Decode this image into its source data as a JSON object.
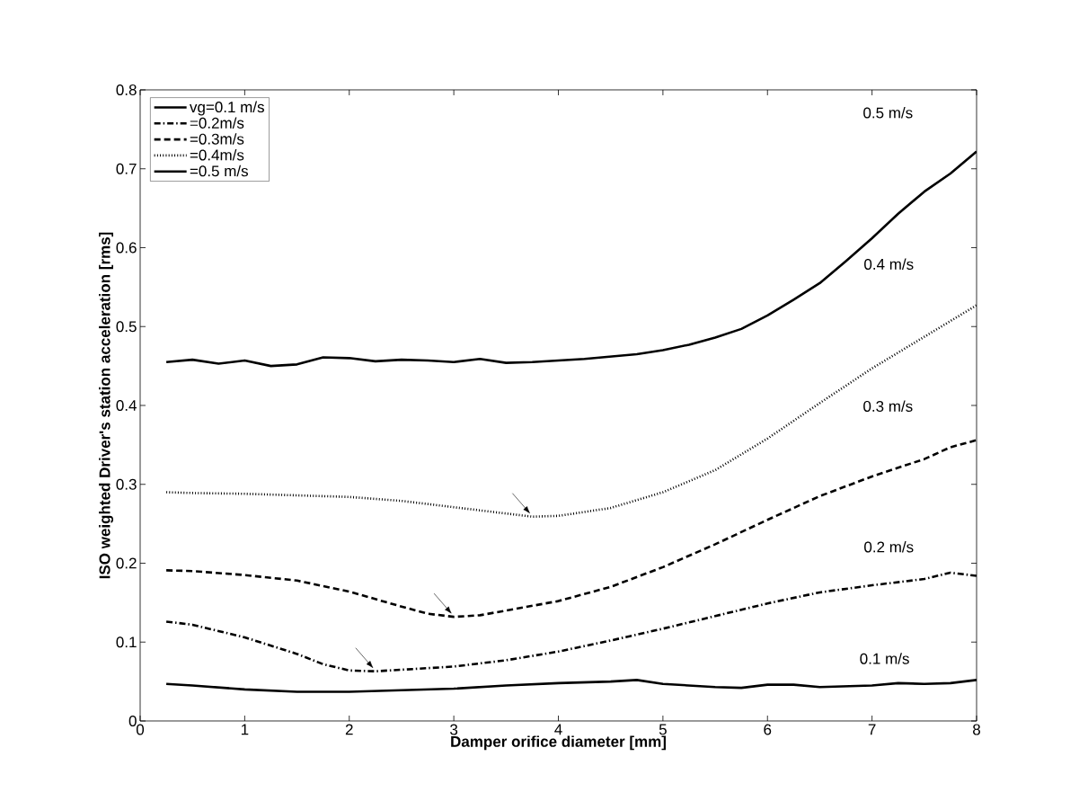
{
  "chart_data": {
    "type": "line",
    "xlabel": "Damper orifice diameter [mm]",
    "ylabel": "ISO weighted Driver's station acceleration [rms]",
    "xlim": [
      0,
      8
    ],
    "ylim": [
      0,
      0.8
    ],
    "xticks": [
      0,
      1,
      2,
      3,
      4,
      5,
      6,
      7,
      8
    ],
    "yticks": [
      0,
      0.1,
      0.2,
      0.3,
      0.4,
      0.5,
      0.6,
      0.7,
      0.8
    ],
    "grid": false,
    "legend": "top left",
    "marker": "none",
    "series": [
      {
        "name": "vg=0.1 m/s",
        "color": "#000000",
        "line_style": "solid",
        "x": [
          0.25,
          0.5,
          1,
          1.5,
          2,
          2.5,
          3,
          3.5,
          4,
          4.5,
          4.75,
          5,
          5.5,
          5.75,
          6,
          6.25,
          6.5,
          7,
          7.25,
          7.5,
          7.75,
          8
        ],
        "values": [
          0.047,
          0.045,
          0.04,
          0.037,
          0.037,
          0.039,
          0.041,
          0.045,
          0.048,
          0.05,
          0.052,
          0.047,
          0.043,
          0.042,
          0.046,
          0.046,
          0.043,
          0.045,
          0.048,
          0.047,
          0.048,
          0.052
        ]
      },
      {
        "name": "=0.2m/s",
        "color": "#000000",
        "line_style": "dashdot",
        "x": [
          0.25,
          0.5,
          1,
          1.5,
          1.75,
          2,
          2.25,
          2.5,
          3,
          3.5,
          4,
          4.5,
          5,
          5.5,
          6,
          6.5,
          7,
          7.5,
          7.75,
          8
        ],
        "values": [
          0.126,
          0.122,
          0.106,
          0.085,
          0.072,
          0.064,
          0.063,
          0.065,
          0.069,
          0.077,
          0.088,
          0.102,
          0.117,
          0.133,
          0.149,
          0.163,
          0.172,
          0.18,
          0.188,
          0.184
        ]
      },
      {
        "name": "=0.3m/s",
        "color": "#000000",
        "line_style": "dashed",
        "x": [
          0.25,
          0.5,
          1,
          1.5,
          2,
          2.5,
          2.75,
          3,
          3.25,
          3.5,
          4,
          4.5,
          5,
          5.5,
          6,
          6.5,
          7,
          7.5,
          7.75,
          8
        ],
        "values": [
          0.191,
          0.19,
          0.185,
          0.178,
          0.164,
          0.145,
          0.136,
          0.132,
          0.134,
          0.14,
          0.152,
          0.17,
          0.195,
          0.224,
          0.255,
          0.285,
          0.31,
          0.332,
          0.347,
          0.356
        ]
      },
      {
        "name": "=0.4m/s",
        "color": "#000000",
        "line_style": "dotted",
        "x": [
          0.25,
          0.5,
          1,
          1.5,
          2,
          2.5,
          3,
          3.5,
          3.75,
          4,
          4.5,
          5,
          5.5,
          6,
          6.5,
          7,
          7.5,
          8
        ],
        "values": [
          0.29,
          0.289,
          0.288,
          0.286,
          0.284,
          0.279,
          0.271,
          0.263,
          0.259,
          0.26,
          0.27,
          0.29,
          0.318,
          0.358,
          0.403,
          0.447,
          0.487,
          0.527
        ]
      },
      {
        "name": "=0.5 m/s",
        "color": "#000000",
        "line_style": "solid",
        "x": [
          0.25,
          0.5,
          0.75,
          1,
          1.25,
          1.5,
          1.75,
          2,
          2.25,
          2.5,
          2.75,
          3,
          3.25,
          3.5,
          3.75,
          4,
          4.25,
          4.5,
          4.75,
          5,
          5.25,
          5.5,
          5.75,
          6,
          6.25,
          6.5,
          6.75,
          7,
          7.25,
          7.5,
          7.75,
          8
        ],
        "values": [
          0.455,
          0.458,
          0.453,
          0.457,
          0.45,
          0.452,
          0.461,
          0.46,
          0.456,
          0.458,
          0.457,
          0.455,
          0.459,
          0.454,
          0.455,
          0.457,
          0.459,
          0.462,
          0.465,
          0.47,
          0.477,
          0.486,
          0.497,
          0.514,
          0.534,
          0.555,
          0.583,
          0.612,
          0.643,
          0.671,
          0.694,
          0.722
        ]
      }
    ],
    "annotations": [
      "0.5 m/s",
      "0.4 m/s",
      "0.3 m/s",
      "0.2 m/s",
      "0.1 m/s"
    ]
  }
}
